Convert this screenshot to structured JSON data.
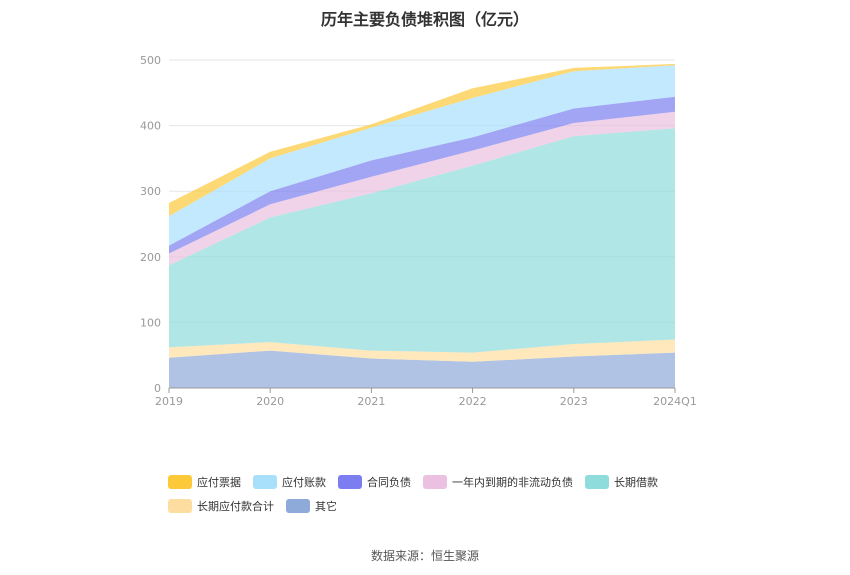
{
  "chart_data": {
    "type": "area",
    "title": "历年主要负债堆积图（亿元）",
    "categories": [
      "2019",
      "2020",
      "2021",
      "2022",
      "2023",
      "2024Q1"
    ],
    "yticks": [
      "0",
      "100",
      "200",
      "300",
      "400",
      "500"
    ],
    "ylim": [
      0,
      500
    ],
    "stacked": true,
    "grid": true,
    "legend_position": "bottom",
    "series": [
      {
        "name": "其它",
        "color": "#8eaad8",
        "values": [
          46,
          57,
          45,
          40,
          48,
          54
        ]
      },
      {
        "name": "长期应付款合计",
        "color": "#fddea0",
        "values": [
          16,
          13,
          12,
          14,
          19,
          20
        ]
      },
      {
        "name": "长期借款",
        "color": "#8fdcdc",
        "values": [
          125,
          190,
          240,
          285,
          317,
          322
        ]
      },
      {
        "name": "一年内到期的非流动负债",
        "color": "#ebc0e0",
        "values": [
          18,
          20,
          25,
          23,
          20,
          25
        ]
      },
      {
        "name": "合同负债",
        "color": "#7b7df0",
        "values": [
          12,
          20,
          25,
          20,
          22,
          23
        ]
      },
      {
        "name": "应付账款",
        "color": "#a8e0fc",
        "values": [
          45,
          50,
          50,
          60,
          57,
          48
        ]
      },
      {
        "name": "应付票据",
        "color": "#fcc93a",
        "values": [
          20,
          10,
          5,
          15,
          5,
          2
        ]
      }
    ]
  },
  "legend": [
    {
      "label": "应付票据",
      "color": "#fcc93a"
    },
    {
      "label": "应付账款",
      "color": "#a8e0fc"
    },
    {
      "label": "合同负债",
      "color": "#7b7df0"
    },
    {
      "label": "一年内到期的非流动负债",
      "color": "#ebc0e0"
    },
    {
      "label": "长期借款",
      "color": "#8fdcdc"
    },
    {
      "label": "长期应付款合计",
      "color": "#fddea0"
    },
    {
      "label": "其它",
      "color": "#8eaad8"
    }
  ],
  "source": "数据来源：恒生聚源"
}
